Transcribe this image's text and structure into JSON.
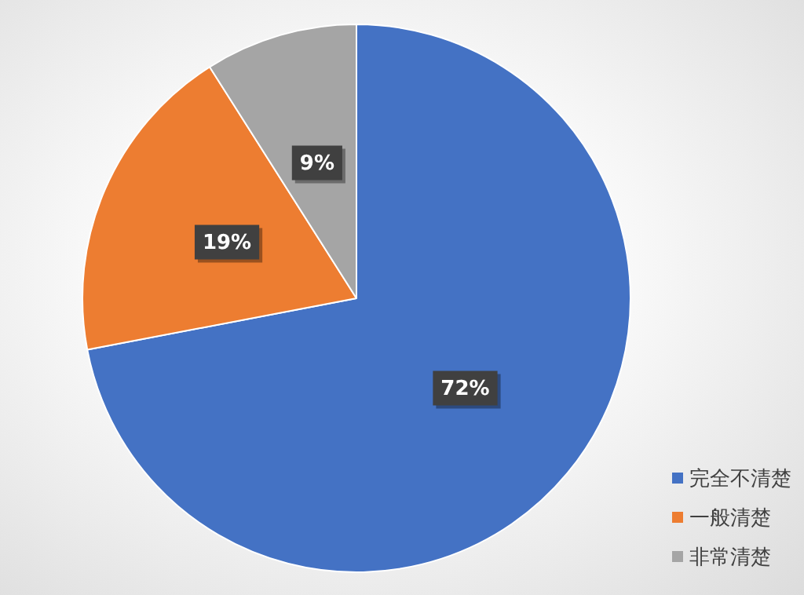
{
  "chart_data": {
    "type": "pie",
    "categories": [
      "完全不清楚",
      "一般清楚",
      "非常清楚"
    ],
    "values": [
      72,
      19,
      9
    ],
    "colors": [
      "#4472c4",
      "#ed7d31",
      "#a5a5a5"
    ],
    "value_labels": [
      "72%",
      "19%",
      "9%"
    ],
    "legend": "bottom right"
  }
}
